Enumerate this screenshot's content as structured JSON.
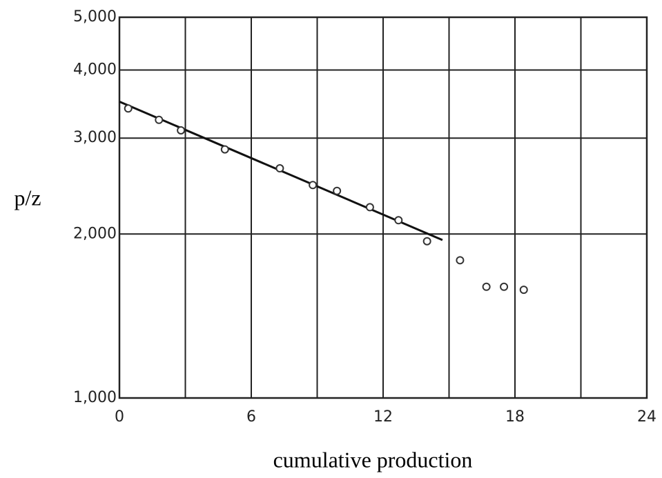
{
  "chart_data": {
    "type": "scatter",
    "ylabel": "p/z",
    "xlabel": "cumulative production",
    "xlim": [
      0,
      24
    ],
    "xticks": [
      0,
      6,
      12,
      18,
      24
    ],
    "x_minor_grid": [
      3,
      9,
      15,
      21
    ],
    "ylim": [
      1000,
      5000
    ],
    "ylog": true,
    "yticks": [
      {
        "value": 1000,
        "label": "1,000"
      },
      {
        "value": 2000,
        "label": "2,000"
      },
      {
        "value": 3000,
        "label": "3,000"
      },
      {
        "value": 4000,
        "label": "4,000"
      },
      {
        "value": 5000,
        "label": "5,000"
      }
    ],
    "grid": true,
    "points": {
      "color": "#333333",
      "x": [
        0.4,
        1.8,
        2.8,
        4.8,
        7.3,
        8.8,
        9.9,
        11.4,
        12.7,
        14.0,
        15.5,
        16.7,
        17.5,
        18.4
      ],
      "values": [
        3400,
        3240,
        3100,
        2860,
        2640,
        2460,
        2400,
        2240,
        2120,
        1940,
        1790,
        1600,
        1600,
        1580
      ]
    },
    "fit_line": {
      "color": "#111111",
      "x": [
        0,
        14.7
      ],
      "values": [
        3500,
        1950
      ]
    }
  }
}
